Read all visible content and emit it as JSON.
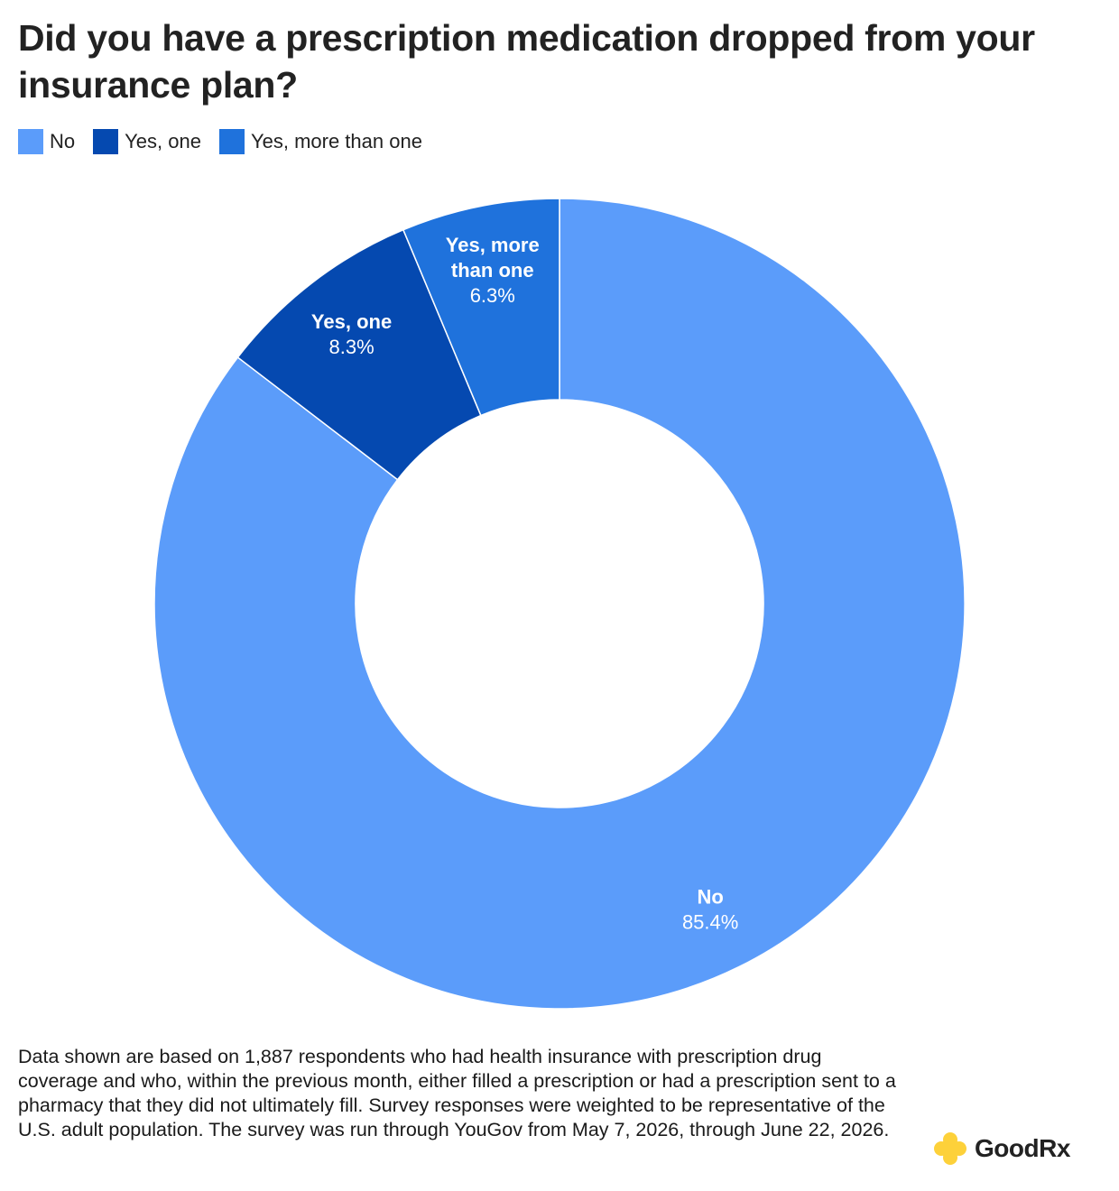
{
  "title": "Did you have a prescription medication dropped from your insurance plan?",
  "legend": [
    {
      "label": "No",
      "color": "#5b9cfa"
    },
    {
      "label": "Yes, one",
      "color": "#0549b0"
    },
    {
      "label": "Yes, more than one",
      "color": "#1f72dc"
    }
  ],
  "chart_data": {
    "type": "pie",
    "donut": true,
    "title": "Did you have a prescription medication dropped from your insurance plan?",
    "categories": [
      "No",
      "Yes, one",
      "Yes, more than one"
    ],
    "values": [
      85.4,
      8.3,
      6.3
    ],
    "value_labels": [
      "85.4%",
      "8.3%",
      "6.3%"
    ],
    "slice_labels": [
      [
        "No"
      ],
      [
        "Yes, one"
      ],
      [
        "Yes, more",
        "than one"
      ]
    ],
    "colors": [
      "#5b9cfa",
      "#0549b0",
      "#1f72dc"
    ],
    "legend_position": "top-left"
  },
  "footnote": "Data shown are based on 1,887 respondents who had health insurance with prescription drug coverage and who, within the previous month, either filled a prescription or had a prescription sent to a pharmacy that they did not ultimately fill. Survey responses were weighted to be representative of the U.S. adult population. The survey was run through YouGov from May 7, 2026, through June 22, 2026.",
  "logo": {
    "text_main": "Good",
    "text_accent": "Rx",
    "icon": "goodrx-plus-icon",
    "icon_color": "#fdd13a"
  }
}
